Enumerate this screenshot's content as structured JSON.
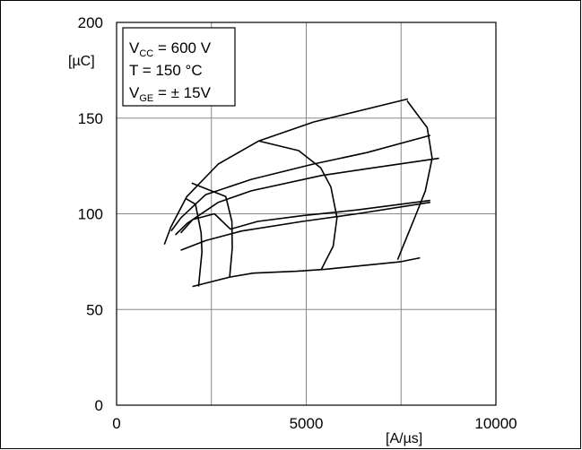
{
  "chart_data": {
    "type": "line",
    "title": "",
    "xlabel": "[A/µs]",
    "ylabel": "[µC]",
    "xlim": [
      0,
      10000
    ],
    "ylim": [
      0,
      200
    ],
    "x_ticks": [
      "0",
      "5000",
      "10000"
    ],
    "y_ticks": [
      "0",
      "50",
      "100",
      "150",
      "200"
    ],
    "grid": true,
    "legend": {
      "placement": "top-left",
      "lines": [
        {
          "main": "V",
          "sub": "CC",
          "rest": " = 600 V"
        },
        {
          "main": "T",
          "sub": "",
          "rest": "   = 150 °C"
        },
        {
          "main": "V",
          "sub": "GE",
          "rest": " = ± 15V"
        }
      ]
    },
    "series": [
      {
        "points": [
          [
            1260,
            84
          ],
          [
            1430,
            93
          ],
          [
            1850,
            109
          ],
          [
            2680,
            126
          ],
          [
            3740,
            138
          ],
          [
            5200,
            148
          ],
          [
            7680,
            160
          ]
        ]
      },
      {
        "points": [
          [
            1440,
            91
          ],
          [
            1700,
            98
          ],
          [
            2350,
            110
          ],
          [
            3550,
            118
          ],
          [
            5190,
            126
          ],
          [
            6600,
            132
          ],
          [
            8270,
            141
          ]
        ]
      },
      {
        "points": [
          [
            1550,
            89
          ],
          [
            1860,
            95
          ],
          [
            2680,
            106
          ],
          [
            3550,
            112
          ],
          [
            5400,
            120
          ],
          [
            6750,
            124
          ],
          [
            8500,
            129
          ]
        ]
      },
      {
        "points": [
          [
            1690,
            90
          ],
          [
            2010,
            97
          ],
          [
            2580,
            100
          ],
          [
            3000,
            92
          ],
          [
            3720,
            96
          ],
          [
            4900,
            99
          ],
          [
            6340,
            102
          ],
          [
            8270,
            107
          ]
        ]
      },
      {
        "points": [
          [
            1690,
            81
          ],
          [
            2350,
            86
          ],
          [
            3300,
            91
          ],
          [
            4900,
            96
          ],
          [
            6340,
            100
          ],
          [
            8270,
            106
          ]
        ]
      },
      {
        "points": [
          [
            2000,
            62
          ],
          [
            3000,
            67
          ],
          [
            3600,
            69
          ],
          [
            4750,
            70
          ],
          [
            5500,
            71
          ],
          [
            7500,
            75
          ],
          [
            8000,
            77
          ]
        ]
      },
      {
        "points": [
          [
            1820,
            108
          ],
          [
            2080,
            105
          ],
          [
            2230,
            90
          ],
          [
            2250,
            80
          ],
          [
            2160,
            62
          ]
        ]
      },
      {
        "points": [
          [
            1980,
            116
          ],
          [
            2880,
            109
          ],
          [
            3040,
            96
          ],
          [
            3050,
            82
          ],
          [
            2980,
            67
          ]
        ]
      },
      {
        "points": [
          [
            3760,
            138
          ],
          [
            4800,
            133
          ],
          [
            5380,
            124
          ],
          [
            5650,
            114
          ],
          [
            5810,
            98
          ],
          [
            5710,
            83
          ],
          [
            5400,
            71
          ]
        ]
      },
      {
        "points": [
          [
            7660,
            159
          ],
          [
            8190,
            145
          ],
          [
            8320,
            129
          ],
          [
            8140,
            112
          ],
          [
            7900,
            100
          ],
          [
            7510,
            81
          ],
          [
            7410,
            76
          ]
        ]
      }
    ]
  }
}
